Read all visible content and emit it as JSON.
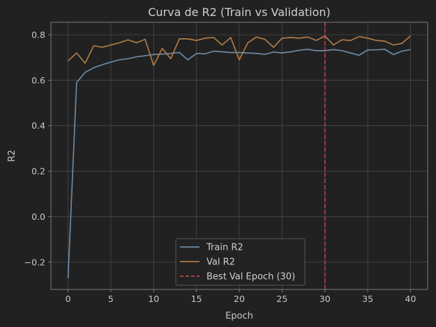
{
  "chart_data": {
    "type": "line",
    "title": "Curva de R2 (Train vs Validation)",
    "xlabel": "Epoch",
    "ylabel": "R2",
    "xlim": [
      -2,
      42
    ],
    "ylim": [
      -0.32,
      0.855
    ],
    "xticks": [
      0,
      5,
      10,
      15,
      20,
      25,
      30,
      35,
      40
    ],
    "yticks": [
      -0.2,
      0.0,
      0.2,
      0.4,
      0.6,
      0.8
    ],
    "ytick_labels": [
      "−0.2",
      "0.0",
      "0.2",
      "0.4",
      "0.6",
      "0.8"
    ],
    "grid": true,
    "legend_position": "lower center",
    "x": [
      0,
      1,
      2,
      3,
      4,
      5,
      6,
      7,
      8,
      9,
      10,
      11,
      12,
      13,
      14,
      15,
      16,
      17,
      18,
      19,
      20,
      21,
      22,
      23,
      24,
      25,
      26,
      27,
      28,
      29,
      30,
      31,
      32,
      33,
      34,
      35,
      36,
      37,
      38,
      39,
      40
    ],
    "series": [
      {
        "name": "Train R2",
        "color": "#6b8aa6",
        "style": "solid",
        "values": [
          -0.27,
          0.59,
          0.635,
          0.655,
          0.668,
          0.68,
          0.69,
          0.695,
          0.703,
          0.708,
          0.713,
          0.715,
          0.718,
          0.722,
          0.69,
          0.718,
          0.716,
          0.728,
          0.725,
          0.722,
          0.722,
          0.72,
          0.718,
          0.714,
          0.724,
          0.72,
          0.725,
          0.732,
          0.736,
          0.73,
          0.73,
          0.735,
          0.73,
          0.72,
          0.71,
          0.733,
          0.734,
          0.736,
          0.713,
          0.728,
          0.735
        ]
      },
      {
        "name": "Val R2",
        "color": "#b07a45",
        "style": "solid",
        "values": [
          0.685,
          0.72,
          0.675,
          0.752,
          0.745,
          0.755,
          0.765,
          0.778,
          0.765,
          0.78,
          0.665,
          0.74,
          0.695,
          0.782,
          0.782,
          0.775,
          0.785,
          0.788,
          0.755,
          0.788,
          0.69,
          0.765,
          0.79,
          0.78,
          0.745,
          0.785,
          0.788,
          0.785,
          0.79,
          0.775,
          0.795,
          0.755,
          0.778,
          0.775,
          0.792,
          0.785,
          0.775,
          0.772,
          0.755,
          0.762,
          0.795
        ]
      }
    ],
    "reference_lines": [
      {
        "name": "Best Val Epoch (30)",
        "orientation": "vertical",
        "x": 30,
        "color": "#c0444c",
        "style": "dashed"
      }
    ]
  },
  "colors": {
    "background": "#212121",
    "axes_edge": "#7a7a7a",
    "grid": "#4a4a4a",
    "text": "#c8c8c8",
    "legend_bg": "#232323",
    "legend_edge": "#555555"
  }
}
